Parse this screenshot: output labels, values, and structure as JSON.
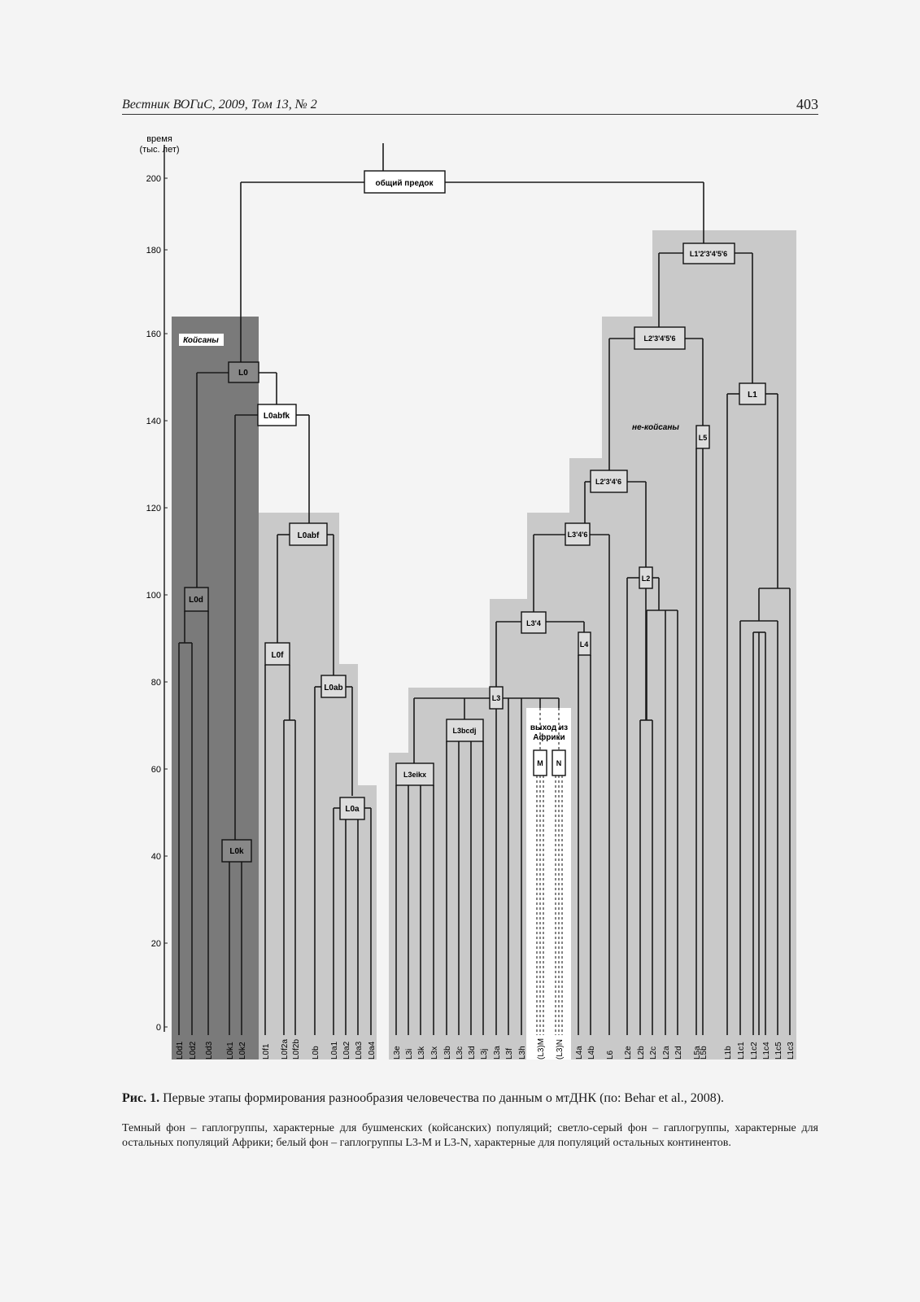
{
  "header": {
    "journal": "Вестник ВОГиС, 2009, Том 13, № 2",
    "page_number": "403"
  },
  "figure": {
    "y_axis_label_1": "время",
    "y_axis_label_2": "(тыс. лет)",
    "y_ticks": [
      "200",
      "180",
      "160",
      "140",
      "120",
      "100",
      "80",
      "60",
      "40",
      "20",
      "0"
    ],
    "labels": {
      "common_ancestor": "общий предок",
      "khoisan": "Койсаны",
      "non_khoisan": "не-койсаны",
      "out_of_africa_1": "выход из",
      "out_of_africa_2": "Африки"
    },
    "nodes": {
      "L0": "L0",
      "L0abfk": "L0abfk",
      "L0d": "L0d",
      "L0k": "L0k",
      "L0abf": "L0abf",
      "L0f": "L0f",
      "L0ab": "L0ab",
      "L0a": "L0a",
      "L1_6": "L1'2'3'4'5'6",
      "L2_6": "L2'3'4'5'6",
      "L2_4_6": "L2'3'4'6",
      "L3_4_6": "L3'4'6",
      "L3_4": "L3'4",
      "L3": "L3",
      "L3bcdj": "L3bcdj",
      "L3eikx": "L3eikx",
      "M": "M",
      "N": "N",
      "L4": "L4",
      "L2": "L2",
      "L5": "L5",
      "L1": "L1"
    },
    "leaves": [
      "L0d1",
      "L0d2",
      "L0d3",
      "L0k1",
      "L0k2",
      "L0f1",
      "L0f2a",
      "L0f2b",
      "L0b",
      "L0a1",
      "L0a2",
      "L0a3",
      "L0a4",
      "L3e",
      "L3i",
      "L3k",
      "L3x",
      "L3b",
      "L3c",
      "L3d",
      "L3j",
      "L3a",
      "L3f",
      "L3h",
      "(L3)M",
      "(L3)N",
      "L4a",
      "L4b",
      "L6",
      "L2e",
      "L2b",
      "L2c",
      "L2a",
      "L2d",
      "L5a",
      "L5b",
      "L1b",
      "L1c1",
      "L1c2",
      "L1c4",
      "L1c5",
      "L1c3"
    ]
  },
  "caption": {
    "label": "Рис. 1.",
    "text": " Первые этапы формирования разнообразия человечества по данным о мтДНК (по: Behar et al., 2008)."
  },
  "note": "Темный фон – гаплогруппы, характерные для бушменских (койсанских) популяций; светло-серый фон – гаплогруппы, характерные для остальных популяций Африки; белый фон – гаплогруппы L3-M и L3-N, характерные для популяций остальных континентов."
}
